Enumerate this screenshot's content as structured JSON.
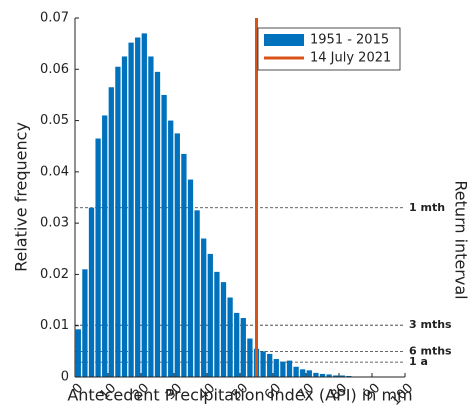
{
  "chart_data": {
    "type": "histogram",
    "xlabel": "Antecedent Precipitation Index (API) in mm",
    "ylabel": "Relative frequency",
    "y2label": "Return interval",
    "bins": [
      0,
      2,
      4,
      6,
      8,
      10,
      12,
      14,
      16,
      18,
      20,
      22,
      24,
      26,
      28,
      30,
      32,
      34,
      36,
      38,
      40,
      42,
      44,
      46,
      48,
      50,
      52,
      54,
      56,
      58,
      60,
      62,
      64,
      66,
      68,
      70,
      72,
      74,
      76,
      78,
      80,
      82,
      84,
      86,
      88,
      90
    ],
    "series": [
      {
        "name": "1951 - 2015",
        "color": "#0072bd",
        "values": [
          0.0093,
          0.021,
          0.033,
          0.0465,
          0.051,
          0.0565,
          0.0605,
          0.0625,
          0.0652,
          0.0662,
          0.067,
          0.0625,
          0.0595,
          0.055,
          0.05,
          0.0475,
          0.0435,
          0.0385,
          0.0325,
          0.027,
          0.024,
          0.0205,
          0.0185,
          0.0155,
          0.0125,
          0.0115,
          0.0075,
          0.0055,
          0.005,
          0.0045,
          0.0035,
          0.003,
          0.0032,
          0.002,
          0.0015,
          0.0013,
          0.0008,
          0.0006,
          0.0005,
          0.0003,
          0.0003,
          0.0002,
          0.0001,
          0.0001,
          0.0001
        ]
      }
    ],
    "event": {
      "name": "14 July 2021",
      "color": "#d95319",
      "x": 55
    },
    "reference_lines": [
      {
        "label": "1 mth",
        "value": 0.033
      },
      {
        "label": "3 mths",
        "value": 0.0101
      },
      {
        "label": "6 mths",
        "value": 0.005
      },
      {
        "label": "1 a",
        "value": 0.0029
      }
    ],
    "xlim": [
      0,
      100
    ],
    "xticks": [
      0,
      10,
      20,
      30,
      40,
      50,
      60,
      70,
      80,
      90,
      100
    ],
    "ylim": [
      0,
      0.07
    ],
    "yticks": [
      0,
      0.01,
      0.02,
      0.03,
      0.04,
      0.05,
      0.06,
      0.07
    ],
    "legend": "upper right"
  }
}
